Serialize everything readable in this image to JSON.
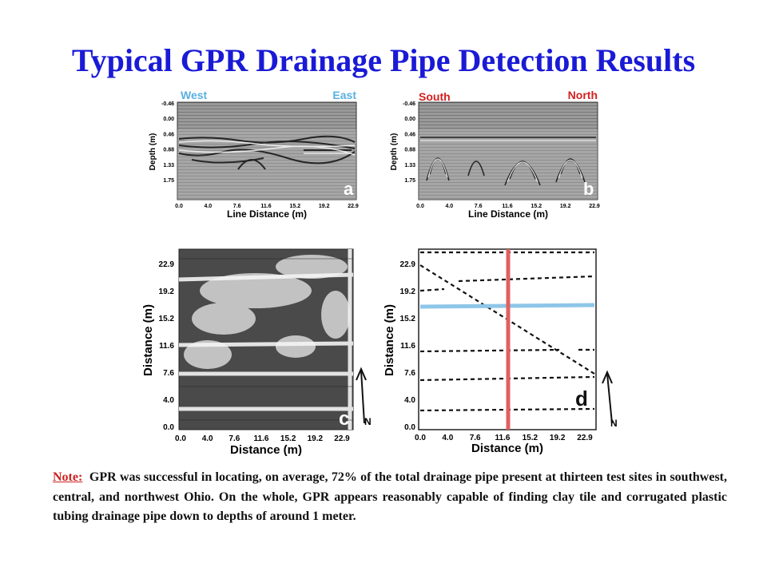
{
  "title": "Typical GPR Drainage Pipe Detection Results",
  "panel_a": {
    "left_dir": "West",
    "right_dir": "East",
    "letter": "a",
    "ylabel": "Depth (m)",
    "xlabel": "Line Distance (m)",
    "yticks": [
      "-0.46",
      "0.00",
      "0.46",
      "0.88",
      "1.33",
      "1.75"
    ],
    "xticks": [
      "0.0",
      "4.0",
      "7.6",
      "11.6",
      "15.2",
      "19.2",
      "22.9"
    ]
  },
  "panel_b": {
    "left_dir": "South",
    "right_dir": "North",
    "letter": "b",
    "ylabel": "Depth (m)",
    "xlabel": "Line Distance (m)",
    "yticks": [
      "-0.46",
      "0.00",
      "0.46",
      "0.88",
      "1.33",
      "1.75"
    ],
    "xticks": [
      "0.0",
      "4.0",
      "7.6",
      "11.6",
      "15.2",
      "19.2",
      "22.9"
    ]
  },
  "panel_c": {
    "letter": "c",
    "north": "N",
    "ylabel": "Distance (m)",
    "xlabel": "Distance (m)",
    "yticks": [
      "22.9",
      "19.2",
      "15.2",
      "11.6",
      "7.6",
      "4.0",
      "0.0"
    ],
    "xticks": [
      "0.0",
      "4.0",
      "7.6",
      "11.6",
      "15.2",
      "19.2",
      "22.9"
    ]
  },
  "panel_d": {
    "letter": "d",
    "north": "N",
    "ylabel": "Distance (m)",
    "xlabel": "Distance (m)",
    "yticks": [
      "22.9",
      "19.2",
      "15.2",
      "11.6",
      "7.6",
      "4.0",
      "0.0"
    ],
    "xticks": [
      "0.0",
      "4.0",
      "7.6",
      "11.6",
      "15.2",
      "19.2",
      "22.9"
    ]
  },
  "note": {
    "label": "Note:",
    "text": "GPR was successful in locating, on average, 72% of the total drainage pipe present at thirteen test sites in southwest, central, and northwest Ohio.  On the whole, GPR appears reasonably capable of finding clay tile and corrugated plastic tubing drainage pipe down to depths of around 1 meter."
  },
  "colors": {
    "title": "#1a1ad6",
    "west_south": "#5ab0e0",
    "east_north": "#d32020",
    "note_label": "#cc2222"
  }
}
